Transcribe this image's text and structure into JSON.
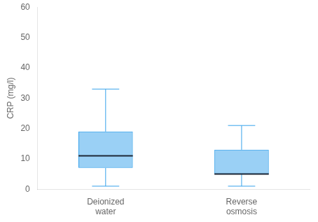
{
  "chart_data": {
    "type": "box",
    "categories": [
      "Deionized\nwater",
      "Reverse\nosmosis"
    ],
    "boxes": [
      {
        "whisker_low": 1,
        "q1": 7,
        "median": 11,
        "q3": 19,
        "whisker_high": 33
      },
      {
        "whisker_low": 1,
        "q1": 5,
        "median": 5,
        "q3": 13,
        "whisker_high": 21
      }
    ],
    "ylabel": "CRP (mg/l)",
    "ylim": [
      0,
      60
    ],
    "yticks": [
      0,
      10,
      20,
      30,
      40,
      50,
      60
    ],
    "grid": false
  }
}
